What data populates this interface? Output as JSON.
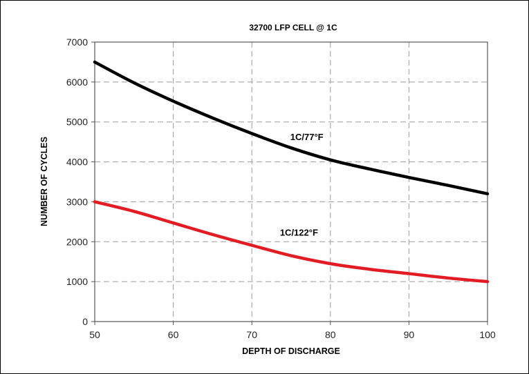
{
  "chart_data": {
    "type": "line",
    "title": "32700 LFP CELL @ 1C",
    "xlabel": "DEPTH OF DISCHARGE",
    "ylabel": "NUMBER OF CYCLES",
    "xlim": [
      50,
      100
    ],
    "ylim": [
      0,
      7000
    ],
    "x_ticks": [
      50,
      60,
      70,
      80,
      90,
      100
    ],
    "y_ticks": [
      0,
      1000,
      2000,
      3000,
      4000,
      5000,
      6000,
      7000
    ],
    "grid": true,
    "grid_style": "dashed",
    "x": [
      50,
      55,
      60,
      65,
      70,
      75,
      80,
      85,
      90,
      95,
      100
    ],
    "series": [
      {
        "name": "1C/77°F",
        "color": "#000000",
        "label_at": [
          77,
          4550
        ],
        "values": [
          6500,
          5980,
          5520,
          5100,
          4710,
          4350,
          4050,
          3820,
          3610,
          3410,
          3200
        ]
      },
      {
        "name": "1C/122°F",
        "color": "#e31b23",
        "label_at": [
          76,
          2150
        ],
        "values": [
          3000,
          2760,
          2470,
          2180,
          1910,
          1650,
          1450,
          1310,
          1200,
          1090,
          1000
        ]
      }
    ]
  }
}
